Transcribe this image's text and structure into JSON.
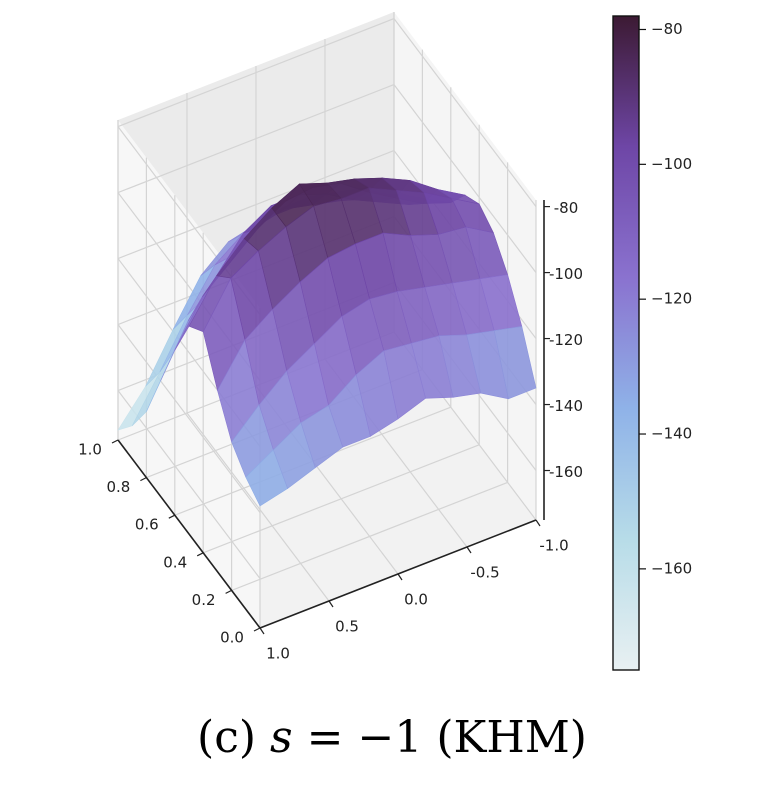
{
  "chart_data": {
    "type": "surface",
    "caption": {
      "label": "(c)",
      "var": "s",
      "expr": " = −1 (KHM)"
    },
    "x_axis": {
      "ticks": [
        "1.0",
        "0.5",
        "0.0",
        "-0.5",
        "-1.0"
      ],
      "range": [
        -1.0,
        1.0
      ]
    },
    "y_axis": {
      "ticks": [
        "1.0",
        "0.8",
        "0.6",
        "0.4",
        "0.2",
        "0.0"
      ],
      "range": [
        0.0,
        1.0
      ]
    },
    "z_axis": {
      "ticks": [
        "-80",
        "-100",
        "-120",
        "-140",
        "-160"
      ],
      "range": [
        -175,
        -78
      ]
    },
    "colorbar": {
      "ticks": [
        "-80",
        "-100",
        "-120",
        "-140",
        "-160"
      ],
      "range": [
        -175,
        -78
      ]
    },
    "colormap": [
      "#e8f0f2",
      "#b7dce8",
      "#8fb2e8",
      "#8a72cf",
      "#6e46a6",
      "#3c1a33"
    ],
    "grid": true,
    "surface": {
      "x": [
        -1.0,
        -0.8,
        -0.6,
        -0.4,
        -0.2,
        0.0,
        0.2,
        0.4,
        0.6,
        0.8,
        1.0
      ],
      "y": [
        0.0,
        0.1,
        0.2,
        0.3,
        0.4,
        0.5,
        0.6,
        0.7,
        0.8,
        0.9,
        1.0
      ],
      "z": [
        [
          -135,
          -135,
          -130,
          -128,
          -125,
          -128,
          -130,
          -130,
          -133,
          -136,
          -138
        ],
        [
          -122,
          -120,
          -118,
          -115,
          -114,
          -113,
          -117,
          -123,
          -125,
          -130,
          -135
        ],
        [
          -112,
          -110,
          -108,
          -106,
          -104,
          -103,
          -105,
          -110,
          -115,
          -122,
          -130
        ],
        [
          -105,
          -100,
          -99,
          -96,
          -92,
          -92,
          -93,
          -97,
          -102,
          -108,
          -120
        ],
        [
          -102,
          -97,
          -92,
          -88,
          -84,
          -84,
          -83,
          -86,
          -90,
          -95,
          -108
        ],
        [
          -105,
          -100,
          -94,
          -90,
          -87,
          -85,
          -82,
          -86,
          -92,
          -100,
          -112
        ],
        [
          -113,
          -110,
          -105,
          -100,
          -94,
          -92,
          -93,
          -98,
          -105,
          -112,
          -125
        ],
        [
          -118,
          -116,
          -112,
          -108,
          -103,
          -100,
          -100,
          -105,
          -115,
          -125,
          -140
        ],
        [
          -123,
          -120,
          -116,
          -114,
          -112,
          -110,
          -112,
          -118,
          -128,
          -140,
          -155
        ],
        [
          -128,
          -124,
          -120,
          -118,
          -118,
          -118,
          -120,
          -126,
          -138,
          -152,
          -165
        ],
        [
          -132,
          -128,
          -126,
          -124,
          -124,
          -126,
          -128,
          -135,
          -148,
          -162,
          -172
        ]
      ]
    }
  }
}
